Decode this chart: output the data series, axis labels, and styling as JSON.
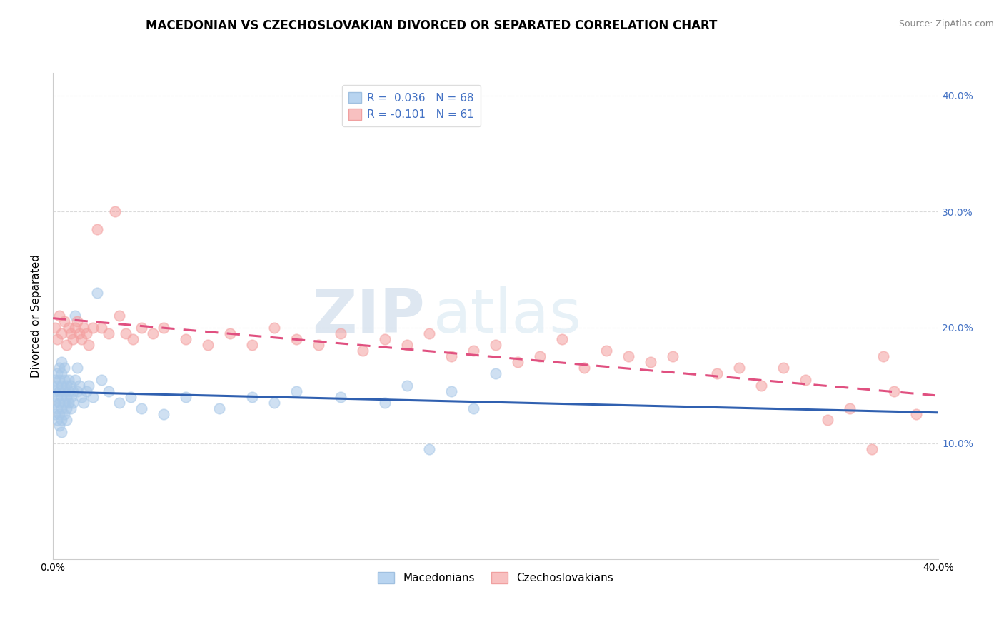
{
  "title": "MACEDONIAN VS CZECHOSLOVAKIAN DIVORCED OR SEPARATED CORRELATION CHART",
  "source": "Source: ZipAtlas.com",
  "ylabel": "Divorced or Separated",
  "xlim": [
    0.0,
    0.4
  ],
  "ylim": [
    0.0,
    0.42
  ],
  "yticks": [
    0.1,
    0.2,
    0.3,
    0.4
  ],
  "right_ytick_labels": [
    "10.0%",
    "20.0%",
    "30.0%",
    "40.0%"
  ],
  "macedonian_color": "#a8c8e8",
  "czechoslovakian_color": "#f4a0a0",
  "macedonian_line_color": "#3060b0",
  "czechoslovakian_line_color": "#e05080",
  "macedonian_line_style": "solid",
  "czechoslovakian_line_style": "dashed",
  "watermark_zip": "ZIP",
  "watermark_atlas": "atlas",
  "background_color": "#ffffff",
  "grid_color": "#cccccc",
  "title_fontsize": 12,
  "axis_label_fontsize": 11,
  "tick_fontsize": 10,
  "legend_fontsize": 11,
  "macedonian_x": [
    0.001,
    0.001,
    0.001,
    0.001,
    0.002,
    0.002,
    0.002,
    0.002,
    0.002,
    0.003,
    0.003,
    0.003,
    0.003,
    0.003,
    0.003,
    0.004,
    0.004,
    0.004,
    0.004,
    0.004,
    0.004,
    0.004,
    0.005,
    0.005,
    0.005,
    0.005,
    0.005,
    0.006,
    0.006,
    0.006,
    0.006,
    0.007,
    0.007,
    0.007,
    0.008,
    0.008,
    0.008,
    0.009,
    0.009,
    0.01,
    0.01,
    0.011,
    0.011,
    0.012,
    0.013,
    0.014,
    0.015,
    0.016,
    0.018,
    0.02,
    0.022,
    0.025,
    0.03,
    0.035,
    0.04,
    0.05,
    0.06,
    0.075,
    0.09,
    0.1,
    0.11,
    0.13,
    0.15,
    0.16,
    0.17,
    0.18,
    0.19,
    0.2
  ],
  "macedonian_y": [
    0.155,
    0.145,
    0.135,
    0.125,
    0.15,
    0.14,
    0.13,
    0.12,
    0.16,
    0.145,
    0.155,
    0.135,
    0.125,
    0.165,
    0.115,
    0.15,
    0.14,
    0.16,
    0.13,
    0.17,
    0.12,
    0.11,
    0.155,
    0.145,
    0.135,
    0.125,
    0.165,
    0.15,
    0.14,
    0.13,
    0.12,
    0.145,
    0.155,
    0.135,
    0.14,
    0.15,
    0.13,
    0.145,
    0.135,
    0.21,
    0.155,
    0.165,
    0.145,
    0.15,
    0.14,
    0.135,
    0.145,
    0.15,
    0.14,
    0.23,
    0.155,
    0.145,
    0.135,
    0.14,
    0.13,
    0.125,
    0.14,
    0.13,
    0.14,
    0.135,
    0.145,
    0.14,
    0.135,
    0.15,
    0.095,
    0.145,
    0.13,
    0.16
  ],
  "czechoslovakian_x": [
    0.001,
    0.002,
    0.003,
    0.004,
    0.005,
    0.006,
    0.007,
    0.008,
    0.009,
    0.01,
    0.011,
    0.012,
    0.013,
    0.014,
    0.015,
    0.016,
    0.018,
    0.02,
    0.022,
    0.025,
    0.028,
    0.03,
    0.033,
    0.036,
    0.04,
    0.045,
    0.05,
    0.06,
    0.07,
    0.08,
    0.09,
    0.1,
    0.11,
    0.12,
    0.13,
    0.14,
    0.15,
    0.16,
    0.17,
    0.18,
    0.19,
    0.2,
    0.21,
    0.22,
    0.23,
    0.24,
    0.25,
    0.26,
    0.27,
    0.28,
    0.3,
    0.31,
    0.32,
    0.33,
    0.34,
    0.35,
    0.36,
    0.37,
    0.375,
    0.38,
    0.39
  ],
  "czechoslovakian_y": [
    0.2,
    0.19,
    0.21,
    0.195,
    0.205,
    0.185,
    0.2,
    0.195,
    0.19,
    0.2,
    0.205,
    0.195,
    0.19,
    0.2,
    0.195,
    0.185,
    0.2,
    0.285,
    0.2,
    0.195,
    0.3,
    0.21,
    0.195,
    0.19,
    0.2,
    0.195,
    0.2,
    0.19,
    0.185,
    0.195,
    0.185,
    0.2,
    0.19,
    0.185,
    0.195,
    0.18,
    0.19,
    0.185,
    0.195,
    0.175,
    0.18,
    0.185,
    0.17,
    0.175,
    0.19,
    0.165,
    0.18,
    0.175,
    0.17,
    0.175,
    0.16,
    0.165,
    0.15,
    0.165,
    0.155,
    0.12,
    0.13,
    0.095,
    0.175,
    0.145,
    0.125
  ]
}
